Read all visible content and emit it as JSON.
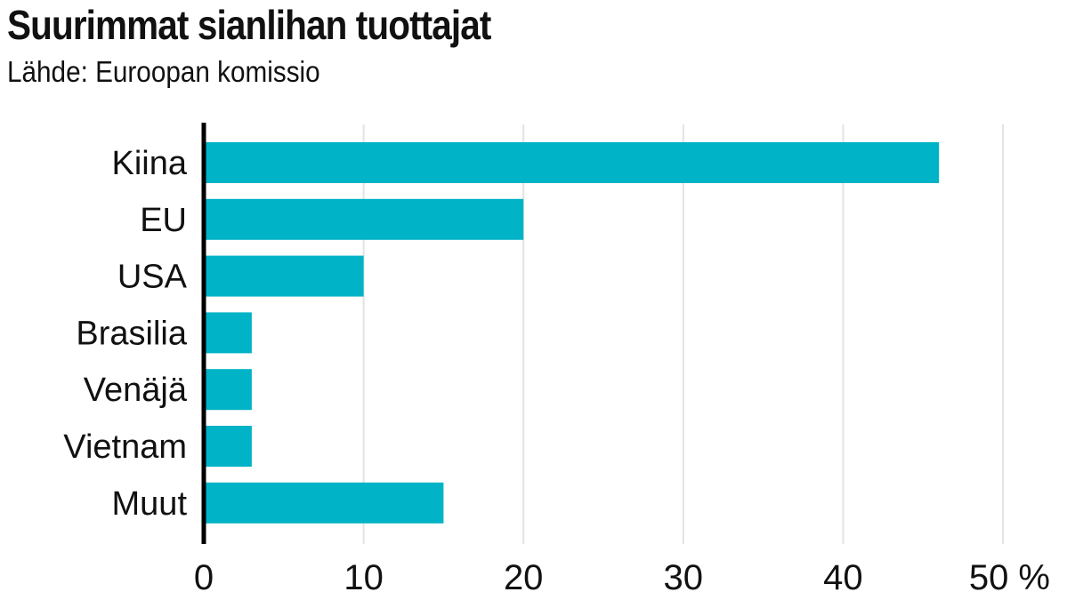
{
  "chart_data": {
    "type": "bar",
    "orientation": "horizontal",
    "title": "Suurimmat sianlihan tuottajat",
    "subtitle": "Lähde: Euroopan komissio",
    "categories": [
      "Kiina",
      "EU",
      "USA",
      "Brasilia",
      "Venäjä",
      "Vietnam",
      "Muut"
    ],
    "values": [
      46,
      20,
      10,
      3,
      3,
      3,
      15
    ],
    "xlim": [
      0,
      50
    ],
    "x_ticks": [
      0,
      10,
      20,
      30,
      40,
      50
    ],
    "x_tick_labels": [
      "0",
      "10",
      "20",
      "30",
      "40",
      "50 %"
    ],
    "grid": true,
    "bar_color": "#00b3c6",
    "grid_color": "#e3e3e3",
    "axis_color": "#000000"
  }
}
